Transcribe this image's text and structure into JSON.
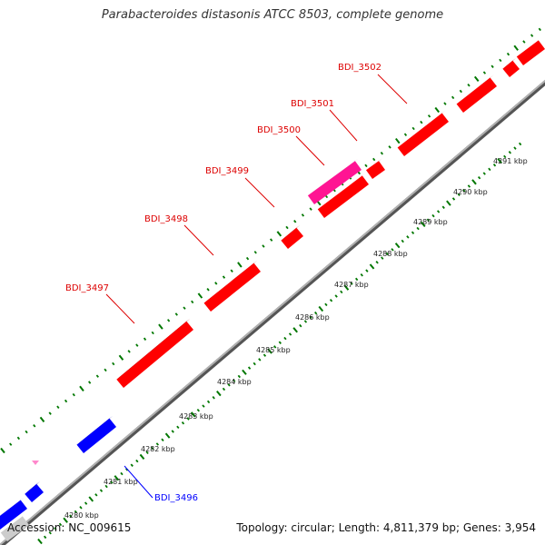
{
  "title": "Parabacteroides distasonis ATCC 8503, complete genome",
  "footer": {
    "accession": "Accession: NC_009615",
    "summary": "Topology: circular; Length: 4,811,379 bp; Genes: 3,954"
  },
  "colors": {
    "forward_gene": "#ff0000",
    "reverse_gene": "#0000ff",
    "highlight_gene": "#ff1493",
    "backbone": "#888888",
    "ticks": "#007700"
  },
  "scale": {
    "unit": "kbp",
    "labels": [
      "4280 kbp",
      "4281 kbp",
      "4282 kbp",
      "4283 kbp",
      "4284 kbp",
      "4285 kbp",
      "4286 kbp",
      "4287 kbp",
      "4288 kbp",
      "4289 kbp",
      "4290 kbp",
      "4291 kbp"
    ]
  },
  "genes": [
    {
      "name": "BDI_3497",
      "strand": "forward"
    },
    {
      "name": "BDI_3498",
      "strand": "forward"
    },
    {
      "name": "BDI_3499",
      "strand": "forward"
    },
    {
      "name": "BDI_3500",
      "strand": "forward"
    },
    {
      "name": "BDI_3501",
      "strand": "forward"
    },
    {
      "name": "BDI_3502",
      "strand": "forward"
    },
    {
      "name": "BDI_3496",
      "strand": "reverse"
    }
  ]
}
